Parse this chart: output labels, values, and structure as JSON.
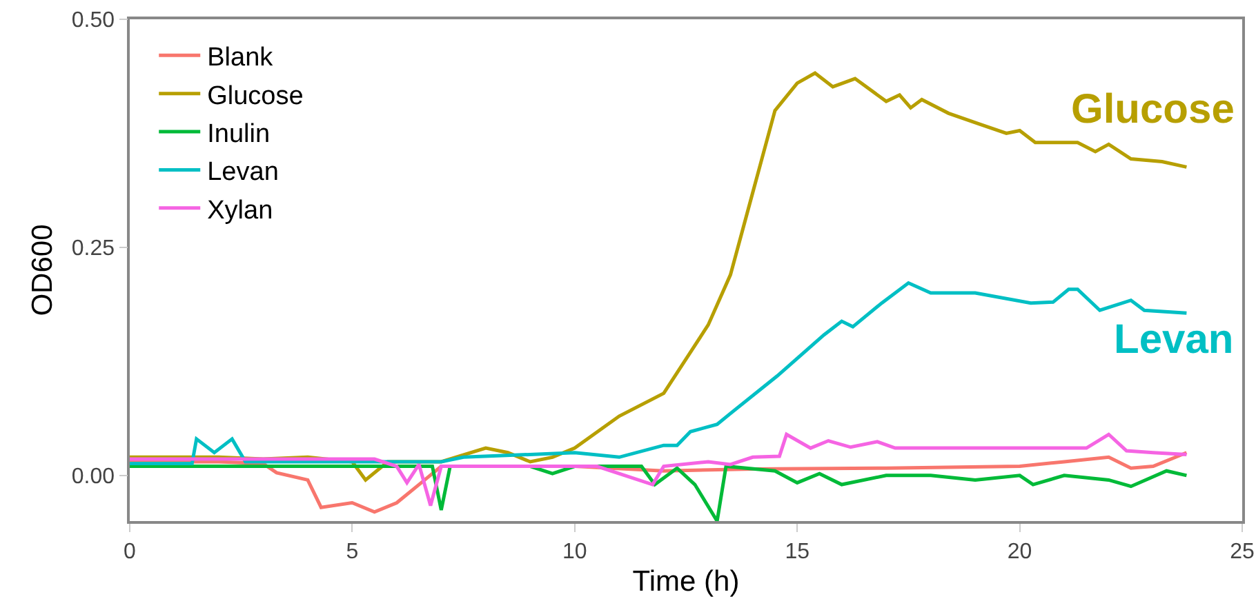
{
  "chart_data": {
    "type": "line",
    "xlabel": "Time (h)",
    "ylabel": "OD600",
    "xlim": [
      0,
      25
    ],
    "ylim": [
      -0.05,
      0.5
    ],
    "xticks": [
      0,
      5,
      10,
      15,
      20,
      25
    ],
    "yticks": [
      {
        "value": 0,
        "label": "0.00"
      },
      {
        "value": 0.25,
        "label": "0.25"
      },
      {
        "value": 0.5,
        "label": "0.50"
      }
    ],
    "grid": false,
    "legend": "top left",
    "marker": "none",
    "line_style": "solid",
    "annotations": [
      "Glucose",
      "Levan"
    ],
    "series": [
      {
        "name": "Blank",
        "color": "#f8766d",
        "x": [
          0,
          1,
          2,
          3,
          3.3,
          4,
          4.3,
          5,
          5.5,
          6,
          6.5,
          7,
          8,
          10,
          12,
          14,
          17,
          20,
          21,
          22,
          22.5,
          23,
          23.75
        ],
        "values": [
          0.015,
          0.015,
          0.015,
          0.013,
          0.003,
          -0.005,
          -0.035,
          -0.03,
          -0.04,
          -0.03,
          -0.01,
          0.01,
          0.01,
          0.01,
          0.005,
          0.007,
          0.008,
          0.01,
          0.015,
          0.02,
          0.008,
          0.01,
          0.025
        ]
      },
      {
        "name": "Glucose",
        "color": "#b79f00",
        "x": [
          0,
          1,
          2,
          3,
          4,
          5,
          5.3,
          5.8,
          6.5,
          7,
          8,
          8.5,
          9,
          9.5,
          10,
          11,
          12,
          13,
          13.5,
          14,
          14.5,
          15,
          15.4,
          15.8,
          16.3,
          17,
          17.3,
          17.55,
          17.8,
          18.4,
          19.1,
          19.7,
          20,
          20.35,
          21.3,
          21.7,
          22,
          22.5,
          23.2,
          23.75
        ],
        "values": [
          0.02,
          0.02,
          0.02,
          0.018,
          0.02,
          0.015,
          -0.005,
          0.015,
          0.015,
          0.015,
          0.03,
          0.025,
          0.015,
          0.02,
          0.03,
          0.065,
          0.09,
          0.165,
          0.22,
          0.31,
          0.4,
          0.43,
          0.441,
          0.426,
          0.435,
          0.41,
          0.417,
          0.403,
          0.412,
          0.397,
          0.385,
          0.375,
          0.378,
          0.365,
          0.365,
          0.355,
          0.363,
          0.347,
          0.344,
          0.338
        ]
      },
      {
        "name": "Inulin",
        "color": "#00ba38",
        "x": [
          0,
          2,
          4,
          6,
          6.8,
          7,
          7.2,
          8,
          9,
          9.5,
          10,
          11.5,
          11.8,
          12.3,
          12.7,
          13.2,
          13.4,
          14.5,
          15,
          15.5,
          16,
          17,
          18,
          19,
          20,
          20.3,
          21,
          22,
          22.5,
          23.3,
          23.75
        ],
        "values": [
          0.01,
          0.01,
          0.01,
          0.01,
          0.01,
          -0.038,
          0.01,
          0.01,
          0.01,
          0.002,
          0.01,
          0.01,
          -0.01,
          0.008,
          -0.01,
          -0.05,
          0.01,
          0.005,
          -0.008,
          0.002,
          -0.01,
          0,
          0,
          -0.005,
          0,
          -0.01,
          0,
          -0.005,
          -0.012,
          0.005,
          0
        ]
      },
      {
        "name": "Levan",
        "color": "#00bfc4",
        "x": [
          0,
          1.4,
          1.5,
          1.9,
          2.3,
          2.6,
          4,
          7,
          7.5,
          10,
          11,
          12,
          12.3,
          12.6,
          13.2,
          13.5,
          14.55,
          15.6,
          16,
          16.25,
          16.9,
          17.5,
          18,
          19,
          20.25,
          20.75,
          21.1,
          21.3,
          21.8,
          22.5,
          22.8,
          23.75
        ],
        "values": [
          0.013,
          0.013,
          0.04,
          0.025,
          0.04,
          0.015,
          0.015,
          0.015,
          0.02,
          0.025,
          0.02,
          0.033,
          0.033,
          0.048,
          0.056,
          0.068,
          0.109,
          0.154,
          0.169,
          0.163,
          0.189,
          0.211,
          0.2,
          0.2,
          0.189,
          0.19,
          0.204,
          0.204,
          0.181,
          0.192,
          0.181,
          0.178
        ]
      },
      {
        "name": "Xylan",
        "color": "#f564e3",
        "x": [
          0,
          2,
          4,
          5.5,
          6,
          6.23,
          6.5,
          6.76,
          7,
          8,
          10,
          10.5,
          11.75,
          12,
          13,
          13.5,
          14,
          14.6,
          14.76,
          15.3,
          15.7,
          16.2,
          16.8,
          17.2,
          19,
          21.5,
          22,
          22.4,
          23,
          23.75
        ],
        "values": [
          0.018,
          0.018,
          0.018,
          0.018,
          0.01,
          -0.008,
          0.012,
          -0.033,
          0.01,
          0.01,
          0.01,
          0.01,
          -0.01,
          0.01,
          0.015,
          0.012,
          0.02,
          0.021,
          0.045,
          0.03,
          0.038,
          0.031,
          0.037,
          0.03,
          0.03,
          0.03,
          0.045,
          0.027,
          0.025,
          0.023
        ]
      }
    ]
  }
}
